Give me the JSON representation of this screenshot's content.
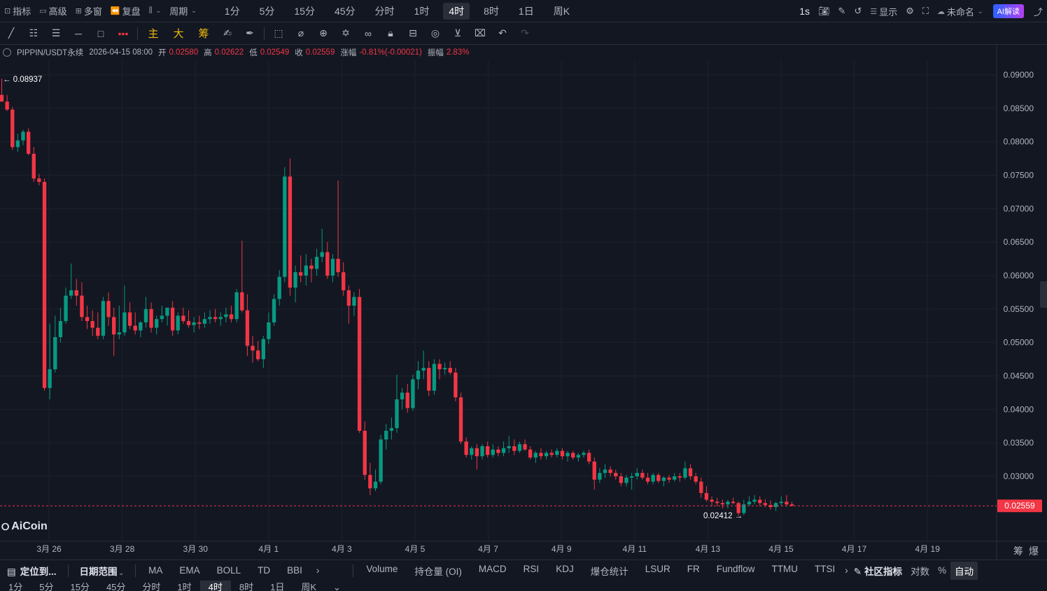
{
  "top_bar": {
    "left_items": [
      {
        "name": "indicators-button",
        "icon": "indicator-icon",
        "glyph": "⊡",
        "label": "指标"
      },
      {
        "name": "advanced-button",
        "icon": "advanced-icon",
        "glyph": "▭",
        "label": "高级"
      },
      {
        "name": "multi-window-button",
        "icon": "grid-icon",
        "glyph": "⊞",
        "label": "多窗"
      },
      {
        "name": "replay-button",
        "icon": "rewind-icon",
        "glyph": "⏪",
        "label": "复盘"
      },
      {
        "name": "chart-type-button",
        "icon": "candle-icon",
        "glyph": "⫼",
        "label": ""
      },
      {
        "name": "period-dropdown",
        "icon": "",
        "glyph": "",
        "label": "周期"
      }
    ],
    "periods": [
      "1分",
      "5分",
      "15分",
      "45分",
      "分时",
      "1时",
      "4时",
      "8时",
      "1日",
      "周K"
    ],
    "active_period": "4时",
    "right_items": {
      "interval": "1s",
      "display_label": "显示",
      "layout_name": "未命名",
      "ai_label": "AI解读"
    }
  },
  "toolbar": {
    "cn_tools": [
      "主",
      "大",
      "筹"
    ]
  },
  "legend": {
    "symbol": "PIPPIN/USDT永续",
    "datetime": "2026-04-15 08:00",
    "open_label": "开",
    "open": "0.02580",
    "high_label": "高",
    "high": "0.02622",
    "low_label": "低",
    "low": "0.02549",
    "close_label": "收",
    "close": "0.02559",
    "change_label": "涨幅",
    "change": "-0.81%(-0.00021)",
    "amp_label": "振幅",
    "amp": "2.83%"
  },
  "logo": "AiCoin",
  "chart_data": {
    "type": "candlestick",
    "ylim": [
      0.0225,
      0.093
    ],
    "yticks": [
      "0.09000",
      "0.08500",
      "0.08000",
      "0.07500",
      "0.07000",
      "0.06500",
      "0.06000",
      "0.05500",
      "0.05000",
      "0.04500",
      "0.04000",
      "0.03500",
      "0.03000"
    ],
    "xticks": [
      "3月 26",
      "3月 28",
      "3月 30",
      "4月 1",
      "4月 3",
      "4月 5",
      "4月 7",
      "4月 9",
      "4月 11",
      "4月 13",
      "4月 15",
      "4月 17",
      "4月 19"
    ],
    "current_price": "0.02559",
    "max_label": "0.08937",
    "min_label": "0.02412",
    "colors": {
      "up": "#089981",
      "down": "#f23645",
      "grid": "#1e222d"
    },
    "candles": [
      [
        0.087,
        0.0894,
        0.0862,
        0.086
      ],
      [
        0.086,
        0.087,
        0.0846,
        0.0848
      ],
      [
        0.0848,
        0.0852,
        0.0788,
        0.0792
      ],
      [
        0.0792,
        0.0812,
        0.0785,
        0.0802
      ],
      [
        0.0802,
        0.0818,
        0.0795,
        0.0815
      ],
      [
        0.0815,
        0.082,
        0.078,
        0.0782
      ],
      [
        0.0782,
        0.0792,
        0.074,
        0.0745
      ],
      [
        0.0745,
        0.0752,
        0.0735,
        0.074
      ],
      [
        0.074,
        0.0745,
        0.0428,
        0.0432
      ],
      [
        0.0432,
        0.0528,
        0.0415,
        0.046
      ],
      [
        0.046,
        0.054,
        0.0455,
        0.0508
      ],
      [
        0.0508,
        0.0552,
        0.05,
        0.0532
      ],
      [
        0.0532,
        0.0582,
        0.0528,
        0.057
      ],
      [
        0.057,
        0.0618,
        0.0565,
        0.0578
      ],
      [
        0.0578,
        0.0595,
        0.0555,
        0.057
      ],
      [
        0.057,
        0.059,
        0.0532,
        0.0538
      ],
      [
        0.0538,
        0.0555,
        0.052,
        0.0532
      ],
      [
        0.0532,
        0.0548,
        0.051,
        0.0522
      ],
      [
        0.0522,
        0.0545,
        0.0505,
        0.051
      ],
      [
        0.051,
        0.0568,
        0.0505,
        0.0562
      ],
      [
        0.0562,
        0.0575,
        0.0525,
        0.0538
      ],
      [
        0.0538,
        0.0552,
        0.048,
        0.0512
      ],
      [
        0.0512,
        0.0555,
        0.0505,
        0.0515
      ],
      [
        0.0515,
        0.0585,
        0.051,
        0.0545
      ],
      [
        0.0545,
        0.056,
        0.052,
        0.0525
      ],
      [
        0.0525,
        0.0545,
        0.0512,
        0.0518
      ],
      [
        0.0518,
        0.0532,
        0.0508,
        0.053
      ],
      [
        0.053,
        0.0568,
        0.0522,
        0.055
      ],
      [
        0.055,
        0.056,
        0.0515,
        0.0522
      ],
      [
        0.0522,
        0.054,
        0.0512,
        0.0535
      ],
      [
        0.0535,
        0.0555,
        0.053,
        0.054
      ],
      [
        0.054,
        0.0552,
        0.0525,
        0.0552
      ],
      [
        0.0552,
        0.0562,
        0.051,
        0.0518
      ],
      [
        0.0518,
        0.0545,
        0.0512,
        0.054
      ],
      [
        0.054,
        0.0552,
        0.0528,
        0.0532
      ],
      [
        0.0532,
        0.0548,
        0.0522,
        0.0526
      ],
      [
        0.0526,
        0.0538,
        0.0515,
        0.053
      ],
      [
        0.053,
        0.054,
        0.052,
        0.0528
      ],
      [
        0.0528,
        0.0545,
        0.0522,
        0.0535
      ],
      [
        0.0535,
        0.0548,
        0.0528,
        0.0538
      ],
      [
        0.0538,
        0.055,
        0.053,
        0.0535
      ],
      [
        0.0535,
        0.0545,
        0.0525,
        0.0538
      ],
      [
        0.0538,
        0.0552,
        0.053,
        0.0542
      ],
      [
        0.0542,
        0.0555,
        0.053,
        0.0535
      ],
      [
        0.0535,
        0.058,
        0.053,
        0.0575
      ],
      [
        0.0575,
        0.0652,
        0.0545,
        0.0548
      ],
      [
        0.0548,
        0.0572,
        0.048,
        0.0495
      ],
      [
        0.0495,
        0.051,
        0.047,
        0.0488
      ],
      [
        0.0488,
        0.0502,
        0.0472,
        0.0475
      ],
      [
        0.0475,
        0.051,
        0.0462,
        0.0505
      ],
      [
        0.0505,
        0.0545,
        0.0498,
        0.053
      ],
      [
        0.053,
        0.0572,
        0.0525,
        0.0565
      ],
      [
        0.0565,
        0.0608,
        0.0555,
        0.0598
      ],
      [
        0.0598,
        0.0762,
        0.059,
        0.0748
      ],
      [
        0.0748,
        0.0775,
        0.057,
        0.0582
      ],
      [
        0.0582,
        0.0615,
        0.056,
        0.0605
      ],
      [
        0.0605,
        0.063,
        0.059,
        0.06
      ],
      [
        0.06,
        0.0632,
        0.0585,
        0.0615
      ],
      [
        0.0615,
        0.0625,
        0.059,
        0.061
      ],
      [
        0.061,
        0.064,
        0.06,
        0.0628
      ],
      [
        0.0628,
        0.067,
        0.062,
        0.0635
      ],
      [
        0.0635,
        0.065,
        0.0595,
        0.06
      ],
      [
        0.06,
        0.0632,
        0.059,
        0.0625
      ],
      [
        0.0625,
        0.0742,
        0.0598,
        0.0605
      ],
      [
        0.0605,
        0.062,
        0.057,
        0.0578
      ],
      [
        0.0578,
        0.0585,
        0.0528,
        0.0555
      ],
      [
        0.0555,
        0.0575,
        0.054,
        0.0568
      ],
      [
        0.0568,
        0.058,
        0.0365,
        0.0368
      ],
      [
        0.0368,
        0.0382,
        0.0295,
        0.0302
      ],
      [
        0.0302,
        0.032,
        0.0272,
        0.0282
      ],
      [
        0.0282,
        0.031,
        0.0278,
        0.0292
      ],
      [
        0.0292,
        0.0362,
        0.0288,
        0.0355
      ],
      [
        0.0355,
        0.0378,
        0.034,
        0.0368
      ],
      [
        0.0368,
        0.0388,
        0.0355,
        0.0372
      ],
      [
        0.0372,
        0.0452,
        0.0365,
        0.0415
      ],
      [
        0.0415,
        0.0432,
        0.04,
        0.0425
      ],
      [
        0.0425,
        0.0438,
        0.0395,
        0.0402
      ],
      [
        0.0402,
        0.0452,
        0.0398,
        0.0445
      ],
      [
        0.0445,
        0.0472,
        0.043,
        0.0458
      ],
      [
        0.0458,
        0.0488,
        0.0445,
        0.0462
      ],
      [
        0.0462,
        0.0472,
        0.042,
        0.0428
      ],
      [
        0.0428,
        0.0475,
        0.0422,
        0.0468
      ],
      [
        0.0468,
        0.0475,
        0.0445,
        0.046
      ],
      [
        0.046,
        0.047,
        0.0452,
        0.0462
      ],
      [
        0.0462,
        0.0472,
        0.0452,
        0.0455
      ],
      [
        0.0455,
        0.0462,
        0.0412,
        0.0418
      ],
      [
        0.0418,
        0.0425,
        0.0348,
        0.0352
      ],
      [
        0.0352,
        0.0358,
        0.0328,
        0.0332
      ],
      [
        0.0332,
        0.0345,
        0.0325,
        0.0342
      ],
      [
        0.0342,
        0.0348,
        0.031,
        0.033
      ],
      [
        0.033,
        0.0348,
        0.0325,
        0.0345
      ],
      [
        0.0345,
        0.0352,
        0.0328,
        0.0332
      ],
      [
        0.0332,
        0.0348,
        0.0328,
        0.034
      ],
      [
        0.034,
        0.0345,
        0.033,
        0.0335
      ],
      [
        0.0335,
        0.0352,
        0.033,
        0.0342
      ],
      [
        0.0342,
        0.036,
        0.0335,
        0.0345
      ],
      [
        0.0345,
        0.0355,
        0.0332,
        0.0338
      ],
      [
        0.0338,
        0.0352,
        0.0335,
        0.0348
      ],
      [
        0.0348,
        0.0355,
        0.0338,
        0.034
      ],
      [
        0.034,
        0.0345,
        0.0325,
        0.0328
      ],
      [
        0.0328,
        0.0338,
        0.032,
        0.0335
      ],
      [
        0.0335,
        0.0342,
        0.0325,
        0.033
      ],
      [
        0.033,
        0.0338,
        0.0325,
        0.0335
      ],
      [
        0.0335,
        0.034,
        0.0328,
        0.0332
      ],
      [
        0.0332,
        0.0342,
        0.0328,
        0.0338
      ],
      [
        0.0338,
        0.0342,
        0.0325,
        0.033
      ],
      [
        0.033,
        0.0338,
        0.0322,
        0.0335
      ],
      [
        0.0335,
        0.0338,
        0.0325,
        0.0328
      ],
      [
        0.0328,
        0.0335,
        0.0322,
        0.0332
      ],
      [
        0.0332,
        0.0338,
        0.0328,
        0.0335
      ],
      [
        0.0335,
        0.034,
        0.0318,
        0.0322
      ],
      [
        0.0322,
        0.0328,
        0.028,
        0.0295
      ],
      [
        0.0295,
        0.0312,
        0.029,
        0.0305
      ],
      [
        0.0305,
        0.0318,
        0.0298,
        0.031
      ],
      [
        0.031,
        0.0315,
        0.03,
        0.0305
      ],
      [
        0.0305,
        0.031,
        0.0295,
        0.03
      ],
      [
        0.03,
        0.0305,
        0.0285,
        0.029
      ],
      [
        0.029,
        0.0302,
        0.0285,
        0.0298
      ],
      [
        0.0298,
        0.0305,
        0.028,
        0.03
      ],
      [
        0.03,
        0.0312,
        0.0295,
        0.0305
      ],
      [
        0.0305,
        0.031,
        0.0295,
        0.0298
      ],
      [
        0.0298,
        0.0305,
        0.0288,
        0.0292
      ],
      [
        0.0292,
        0.0305,
        0.0288,
        0.0302
      ],
      [
        0.0302,
        0.0305,
        0.029,
        0.0293
      ],
      [
        0.0293,
        0.03,
        0.0285,
        0.0298
      ],
      [
        0.0298,
        0.0302,
        0.029,
        0.0295
      ],
      [
        0.0295,
        0.0305,
        0.0292,
        0.03
      ],
      [
        0.03,
        0.0305,
        0.0292,
        0.0298
      ],
      [
        0.0298,
        0.0322,
        0.0295,
        0.0312
      ],
      [
        0.0312,
        0.0318,
        0.0295,
        0.03
      ],
      [
        0.03,
        0.0305,
        0.0288,
        0.0292
      ],
      [
        0.0292,
        0.0298,
        0.0268,
        0.0275
      ],
      [
        0.0275,
        0.0285,
        0.0262,
        0.0265
      ],
      [
        0.0265,
        0.027,
        0.0255,
        0.0262
      ],
      [
        0.0262,
        0.0268,
        0.0255,
        0.026
      ],
      [
        0.026,
        0.0265,
        0.0252,
        0.0258
      ],
      [
        0.0258,
        0.0265,
        0.0252,
        0.0262
      ],
      [
        0.0262,
        0.0268,
        0.0258,
        0.026
      ],
      [
        0.026,
        0.0262,
        0.0241,
        0.0245
      ],
      [
        0.0245,
        0.0265,
        0.0242,
        0.0258
      ],
      [
        0.0258,
        0.027,
        0.0255,
        0.0262
      ],
      [
        0.0262,
        0.0272,
        0.0258,
        0.0265
      ],
      [
        0.0265,
        0.027,
        0.0255,
        0.026
      ],
      [
        0.026,
        0.0266,
        0.0254,
        0.0257
      ],
      [
        0.0257,
        0.0264,
        0.025,
        0.0254
      ],
      [
        0.0254,
        0.0262,
        0.0248,
        0.026
      ],
      [
        0.026,
        0.027,
        0.0256,
        0.0262
      ],
      [
        0.0262,
        0.0272,
        0.0255,
        0.0258
      ],
      [
        0.0258,
        0.0262,
        0.0255,
        0.0256
      ]
    ]
  },
  "bottom_bar": {
    "locate_label": "定位到...",
    "date_range_label": "日期范围",
    "main_indicators": [
      "MA",
      "EMA",
      "BOLL",
      "TD",
      "BBI"
    ],
    "sub_indicators": [
      "Volume",
      "持仓量 (OI)",
      "MACD",
      "RSI",
      "KDJ",
      "爆仓统计",
      "LSUR",
      "FR",
      "Fundflow",
      "TTMU",
      "TTSI"
    ],
    "community_label": "社区指标",
    "log_label": "对数",
    "percent_label": "%",
    "auto_label": "自动"
  },
  "side_labels": {
    "chips": "筹",
    "liq": "爆"
  }
}
